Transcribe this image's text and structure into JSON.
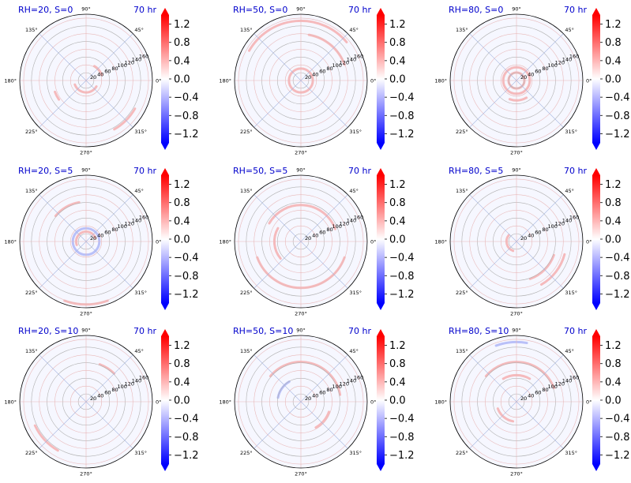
{
  "colors": {
    "title": "#0000cc",
    "neg": "#0000ff",
    "pos": "#ff0000",
    "grid": "#b0b0b0"
  },
  "chart_data": {
    "type": "heatmap",
    "projection": "polar",
    "radial_ticks": [
      "20",
      "40",
      "60",
      "80",
      "100",
      "120",
      "140",
      "160"
    ],
    "angle_ticks": [
      "0°",
      "45°",
      "90°",
      "135°",
      "180°",
      "225°",
      "270°",
      "315°"
    ],
    "colorbar": {
      "ticks": [
        "1.2",
        "0.8",
        "0.4",
        "0.0",
        "−0.4",
        "−0.8",
        "−1.2"
      ],
      "range": [
        -1.4,
        1.4
      ],
      "colormap": "bwr",
      "extend": "both"
    },
    "panels": [
      {
        "title": "RH=20, S=0",
        "time": "70 hr"
      },
      {
        "title": "RH=50, S=0",
        "time": "70 hr"
      },
      {
        "title": "RH=80, S=0",
        "time": "70 hr"
      },
      {
        "title": "RH=20, S=5",
        "time": "70 hr"
      },
      {
        "title": "RH=50, S=5",
        "time": "70 hr"
      },
      {
        "title": "RH=80, S=5",
        "time": "70 hr"
      },
      {
        "title": "RH=20, S=10",
        "time": "70 hr"
      },
      {
        "title": "RH=50, S=10",
        "time": "70 hr"
      },
      {
        "title": "RH=80, S=10",
        "time": "70 hr"
      }
    ]
  }
}
